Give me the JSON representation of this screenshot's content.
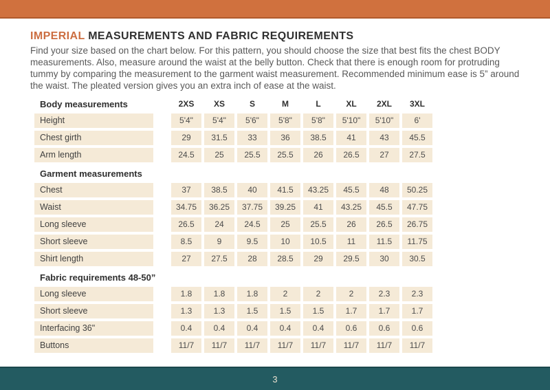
{
  "colors": {
    "accent_orange": "#d0713e",
    "footer_teal": "#235b61",
    "row_beige": "#f5ead7"
  },
  "header": {
    "title_highlight": "IMPERIAL",
    "title_rest": " MEASUREMENTS AND FABRIC REQUIREMENTS",
    "intro": "Find your size based on the chart below. For this pattern, you should choose the size that best fits the chest BODY measurements.  Also, measure around the waist at the belly button. Check that there is enough room for protruding tummy by comparing the measurement to the garment waist measurement. Recommended minimum ease is 5” around the waist. The pleated version gives you an extra inch of ease at the waist."
  },
  "size_chart": {
    "columns": [
      "2XS",
      "XS",
      "S",
      "M",
      "L",
      "XL",
      "2XL",
      "3XL"
    ],
    "sections": [
      {
        "title": "Body measurements",
        "rows": [
          {
            "label": "Height",
            "values": [
              "5'4\"",
              "5'4\"",
              "5'6\"",
              "5'8\"",
              "5'8\"",
              "5'10\"",
              "5'10\"",
              "6'"
            ]
          },
          {
            "label": "Chest girth",
            "values": [
              "29",
              "31.5",
              "33",
              "36",
              "38.5",
              "41",
              "43",
              "45.5"
            ]
          },
          {
            "label": "Arm length",
            "values": [
              "24.5",
              "25",
              "25.5",
              "25.5",
              "26",
              "26.5",
              "27",
              "27.5"
            ]
          }
        ]
      },
      {
        "title": "Garment measurements",
        "rows": [
          {
            "label": "Chest",
            "values": [
              "37",
              "38.5",
              "40",
              "41.5",
              "43.25",
              "45.5",
              "48",
              "50.25"
            ]
          },
          {
            "label": "Waist",
            "values": [
              "34.75",
              "36.25",
              "37.75",
              "39.25",
              "41",
              "43.25",
              "45.5",
              "47.75"
            ]
          },
          {
            "label": "Long sleeve",
            "values": [
              "26.5",
              "24",
              "24.5",
              "25",
              "25.5",
              "26",
              "26.5",
              "26.75"
            ]
          },
          {
            "label": "Short sleeve",
            "values": [
              "8.5",
              "9",
              "9.5",
              "10",
              "10.5",
              "11",
              "11.5",
              "11.75"
            ]
          },
          {
            "label": "Shirt length",
            "values": [
              "27",
              "27.5",
              "28",
              "28.5",
              "29",
              "29.5",
              "30",
              "30.5"
            ]
          }
        ]
      },
      {
        "title": "Fabric requirements 48-50”",
        "rows": [
          {
            "label": "Long sleeve",
            "values": [
              "1.8",
              "1.8",
              "1.8",
              "2",
              "2",
              "2",
              "2.3",
              "2.3"
            ]
          },
          {
            "label": "Short sleeve",
            "values": [
              "1.3",
              "1.3",
              "1.5",
              "1.5",
              "1.5",
              "1.7",
              "1.7",
              "1.7"
            ]
          },
          {
            "label": "Interfacing 36\"",
            "values": [
              "0.4",
              "0.4",
              "0.4",
              "0.4",
              "0.4",
              "0.6",
              "0.6",
              "0.6"
            ]
          },
          {
            "label": "Buttons",
            "values": [
              "11/7",
              "11/7",
              "11/7",
              "11/7",
              "11/7",
              "11/7",
              "11/7",
              "11/7"
            ]
          }
        ]
      }
    ]
  },
  "footer": {
    "page_number": "3"
  }
}
